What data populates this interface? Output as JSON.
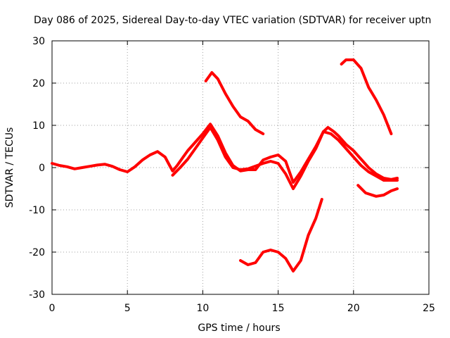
{
  "chart_data": {
    "type": "line",
    "title": "Day 086 of 2025, Sidereal Day-to-day VTEC variation (SDTVAR) for receiver uptn",
    "xlabel": "GPS time / hours",
    "ylabel": "SDTVAR / TECUs",
    "xlim": [
      0,
      25
    ],
    "ylim": [
      -30,
      30
    ],
    "xticks": [
      0,
      5,
      10,
      15,
      20,
      25
    ],
    "yticks": [
      -30,
      -20,
      -10,
      0,
      10,
      20,
      30
    ],
    "grid": true,
    "legend": "none",
    "series_color": "#ff0000",
    "series": [
      {
        "name": "main-a",
        "points": [
          [
            0,
            1
          ],
          [
            0.5,
            0.5
          ],
          [
            1,
            0.2
          ],
          [
            1.5,
            -0.3
          ],
          [
            2,
            0
          ],
          [
            2.5,
            0.3
          ],
          [
            3,
            0.6
          ],
          [
            3.5,
            0.8
          ],
          [
            4,
            0.3
          ],
          [
            4.5,
            -0.5
          ],
          [
            5,
            -1
          ],
          [
            5.5,
            0.2
          ],
          [
            6,
            1.8
          ],
          [
            6.5,
            3
          ],
          [
            7,
            3.8
          ],
          [
            7.5,
            2.5
          ],
          [
            7.8,
            0.5
          ],
          [
            8,
            -0.8
          ],
          [
            8.3,
            0.5
          ],
          [
            8.7,
            2.5
          ],
          [
            9,
            4
          ],
          [
            9.5,
            6
          ],
          [
            10,
            8
          ],
          [
            10.5,
            10.3
          ],
          [
            11,
            7.5
          ],
          [
            11.5,
            3.5
          ],
          [
            12,
            0.5
          ],
          [
            12.5,
            -0.8
          ],
          [
            13,
            -0.5
          ],
          [
            13.5,
            -0.5
          ],
          [
            14,
            1.8
          ],
          [
            14.5,
            2.5
          ],
          [
            15,
            3
          ],
          [
            15.5,
            1.5
          ],
          [
            16,
            -3.5
          ],
          [
            16.5,
            -1
          ],
          [
            17,
            2
          ],
          [
            17.5,
            5
          ],
          [
            18,
            8.5
          ],
          [
            18.3,
            9.5
          ],
          [
            18.7,
            8.5
          ],
          [
            19,
            7.5
          ],
          [
            19.5,
            5.5
          ],
          [
            20,
            4
          ],
          [
            20.5,
            2
          ],
          [
            21,
            0
          ],
          [
            21.5,
            -1.5
          ],
          [
            22,
            -2.5
          ],
          [
            22.5,
            -2.8
          ],
          [
            22.9,
            -2.5
          ]
        ]
      },
      {
        "name": "main-b",
        "points": [
          [
            8,
            -1.8
          ],
          [
            8.5,
            0
          ],
          [
            9,
            2
          ],
          [
            9.5,
            4.5
          ],
          [
            10,
            7
          ],
          [
            10.5,
            9.5
          ],
          [
            11,
            6.5
          ],
          [
            11.5,
            2.5
          ],
          [
            12,
            0
          ],
          [
            12.5,
            -0.5
          ],
          [
            13,
            -0.3
          ],
          [
            14,
            1
          ],
          [
            14.5,
            1.5
          ],
          [
            15,
            1
          ],
          [
            15.5,
            -1.5
          ],
          [
            16,
            -5
          ],
          [
            16.5,
            -2
          ],
          [
            17,
            1.5
          ],
          [
            17.5,
            4.5
          ],
          [
            18,
            8.5
          ],
          [
            18.5,
            8
          ],
          [
            19,
            6.5
          ],
          [
            19.5,
            4.5
          ],
          [
            20,
            2.5
          ],
          [
            20.5,
            0.5
          ],
          [
            21,
            -1
          ],
          [
            21.5,
            -2
          ],
          [
            22,
            -3
          ],
          [
            22.9,
            -3
          ]
        ]
      },
      {
        "name": "upper-a",
        "points": [
          [
            10.2,
            20.5
          ],
          [
            10.6,
            22.5
          ],
          [
            11,
            21
          ],
          [
            11.5,
            17.5
          ],
          [
            12,
            14.5
          ],
          [
            12.5,
            12
          ],
          [
            13,
            11
          ],
          [
            13.5,
            9
          ],
          [
            14,
            8
          ]
        ]
      },
      {
        "name": "upper-b",
        "points": [
          [
            19.2,
            24.5
          ],
          [
            19.5,
            25.5
          ],
          [
            20,
            25.5
          ],
          [
            20.5,
            23.5
          ],
          [
            21,
            19
          ],
          [
            21.5,
            16
          ],
          [
            22,
            12.5
          ],
          [
            22.5,
            8
          ]
        ]
      },
      {
        "name": "lower-a",
        "points": [
          [
            12.5,
            -22
          ],
          [
            13,
            -23
          ],
          [
            13.5,
            -22.5
          ],
          [
            14,
            -20
          ],
          [
            14.5,
            -19.5
          ],
          [
            15,
            -20
          ],
          [
            15.5,
            -21.5
          ],
          [
            16,
            -24.5
          ],
          [
            16.5,
            -22
          ],
          [
            17,
            -16
          ],
          [
            17.5,
            -12
          ],
          [
            17.9,
            -7.5
          ]
        ]
      },
      {
        "name": "lower-b",
        "points": [
          [
            20.3,
            -4.2
          ],
          [
            20.8,
            -6
          ],
          [
            21.5,
            -6.8
          ],
          [
            22,
            -6.5
          ],
          [
            22.5,
            -5.5
          ],
          [
            22.9,
            -5
          ]
        ]
      }
    ]
  }
}
